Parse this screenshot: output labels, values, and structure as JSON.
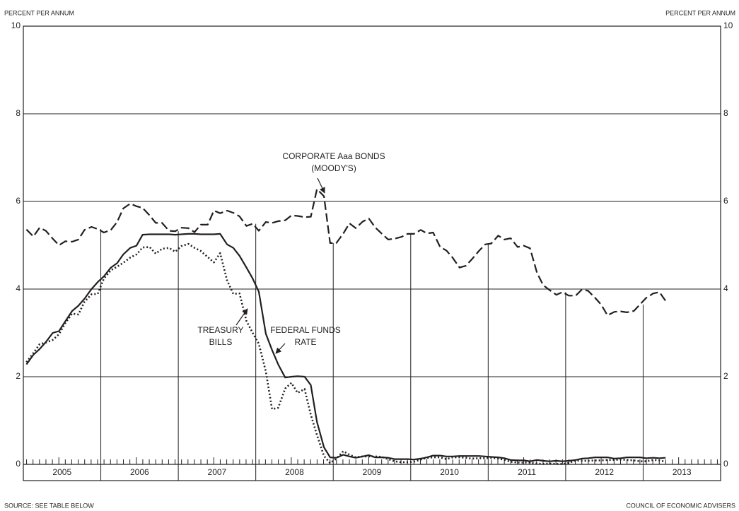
{
  "chart_data": {
    "type": "line",
    "y_label_left": "PERCENT PER ANNUM",
    "y_label_right": "PERCENT PER ANNUM",
    "source": "SOURCE: SEE TABLE BELOW",
    "credit": "COUNCIL OF ECONOMIC ADVISERS",
    "annotations": [
      {
        "lines": [
          "CORPORATE Aaa BONDS",
          "(MOODY'S)"
        ],
        "series": 0
      },
      {
        "lines": [
          "TREASURY",
          "BILLS"
        ],
        "series": 2
      },
      {
        "lines": [
          "FEDERAL FUNDS",
          "RATE"
        ],
        "series": 1
      }
    ],
    "xlim": [
      2005,
      2014
    ],
    "xticks": [
      {
        "value": 2005.5,
        "label": "2005"
      },
      {
        "value": 2006.5,
        "label": "2006"
      },
      {
        "value": 2007.5,
        "label": "2007"
      },
      {
        "value": 2008.5,
        "label": "2008"
      },
      {
        "value": 2009.5,
        "label": "2009"
      },
      {
        "value": 2010.5,
        "label": "2010"
      },
      {
        "value": 2011.5,
        "label": "2011"
      },
      {
        "value": 2012.5,
        "label": "2012"
      },
      {
        "value": 2013.5,
        "label": "2013"
      }
    ],
    "ylim": [
      0,
      10
    ],
    "yticks": [
      0,
      2,
      4,
      6,
      8,
      10
    ],
    "grid": true,
    "x": [
      2005.04,
      2005.13,
      2005.21,
      2005.29,
      2005.38,
      2005.46,
      2005.54,
      2005.63,
      2005.71,
      2005.79,
      2005.88,
      2005.96,
      2006.04,
      2006.13,
      2006.21,
      2006.29,
      2006.38,
      2006.46,
      2006.54,
      2006.63,
      2006.71,
      2006.79,
      2006.88,
      2006.96,
      2007.04,
      2007.13,
      2007.21,
      2007.29,
      2007.38,
      2007.46,
      2007.54,
      2007.63,
      2007.71,
      2007.79,
      2007.88,
      2007.96,
      2008.04,
      2008.13,
      2008.21,
      2008.29,
      2008.38,
      2008.46,
      2008.54,
      2008.63,
      2008.71,
      2008.79,
      2008.88,
      2008.96,
      2009.04,
      2009.13,
      2009.21,
      2009.29,
      2009.38,
      2009.46,
      2009.54,
      2009.63,
      2009.71,
      2009.79,
      2009.88,
      2009.96,
      2010.04,
      2010.13,
      2010.21,
      2010.29,
      2010.38,
      2010.46,
      2010.54,
      2010.63,
      2010.71,
      2010.79,
      2010.88,
      2010.96,
      2011.04,
      2011.13,
      2011.21,
      2011.29,
      2011.38,
      2011.46,
      2011.54,
      2011.63,
      2011.71,
      2011.79,
      2011.88,
      2011.96,
      2012.04,
      2012.13,
      2012.21,
      2012.29,
      2012.38,
      2012.46,
      2012.54,
      2012.63,
      2012.71,
      2012.79,
      2012.88,
      2012.96,
      2013.04,
      2013.13,
      2013.21,
      2013.29
    ],
    "series": [
      {
        "name": "CORPORATE Aaa BONDS (MOODY'S)",
        "color": "#231f20",
        "style": "dashed",
        "values": [
          5.36,
          5.2,
          5.4,
          5.33,
          5.15,
          5.0,
          5.09,
          5.08,
          5.13,
          5.35,
          5.42,
          5.37,
          5.29,
          5.35,
          5.53,
          5.84,
          5.95,
          5.89,
          5.85,
          5.68,
          5.51,
          5.51,
          5.33,
          5.32,
          5.4,
          5.39,
          5.3,
          5.47,
          5.47,
          5.79,
          5.73,
          5.79,
          5.74,
          5.66,
          5.44,
          5.49,
          5.33,
          5.53,
          5.51,
          5.55,
          5.57,
          5.68,
          5.67,
          5.64,
          5.65,
          6.28,
          6.12,
          5.05,
          5.05,
          5.27,
          5.5,
          5.39,
          5.54,
          5.61,
          5.41,
          5.26,
          5.13,
          5.15,
          5.19,
          5.26,
          5.26,
          5.35,
          5.27,
          5.29,
          4.96,
          4.88,
          4.72,
          4.49,
          4.53,
          4.68,
          4.87,
          5.02,
          5.04,
          5.22,
          5.13,
          5.16,
          4.96,
          4.99,
          4.93,
          4.37,
          4.09,
          3.98,
          3.87,
          3.93,
          3.85,
          3.85,
          3.99,
          3.96,
          3.8,
          3.64,
          3.4,
          3.48,
          3.49,
          3.47,
          3.5,
          3.65,
          3.8,
          3.9,
          3.93,
          3.73
        ]
      },
      {
        "name": "FEDERAL FUNDS RATE",
        "color": "#231f20",
        "style": "solid",
        "values": [
          2.28,
          2.5,
          2.63,
          2.79,
          3.0,
          3.04,
          3.26,
          3.5,
          3.62,
          3.78,
          4.0,
          4.16,
          4.29,
          4.49,
          4.59,
          4.79,
          4.94,
          4.99,
          5.24,
          5.25,
          5.25,
          5.25,
          5.25,
          5.24,
          5.25,
          5.26,
          5.26,
          5.25,
          5.25,
          5.25,
          5.26,
          5.02,
          4.94,
          4.76,
          4.49,
          4.24,
          3.94,
          2.98,
          2.61,
          2.28,
          1.98,
          2.0,
          2.01,
          2.0,
          1.81,
          0.97,
          0.39,
          0.16,
          0.15,
          0.22,
          0.18,
          0.15,
          0.18,
          0.21,
          0.16,
          0.16,
          0.15,
          0.12,
          0.12,
          0.12,
          0.11,
          0.13,
          0.16,
          0.2,
          0.2,
          0.18,
          0.18,
          0.19,
          0.19,
          0.19,
          0.19,
          0.18,
          0.17,
          0.16,
          0.14,
          0.1,
          0.09,
          0.09,
          0.07,
          0.1,
          0.08,
          0.07,
          0.08,
          0.07,
          0.08,
          0.1,
          0.13,
          0.14,
          0.16,
          0.16,
          0.16,
          0.13,
          0.14,
          0.16,
          0.16,
          0.16,
          0.14,
          0.15,
          0.14,
          0.15
        ]
      },
      {
        "name": "TREASURY BILLS",
        "color": "#231f20",
        "style": "dotted",
        "values": [
          2.33,
          2.54,
          2.74,
          2.78,
          2.84,
          2.97,
          3.22,
          3.44,
          3.42,
          3.71,
          3.88,
          3.89,
          4.24,
          4.43,
          4.51,
          4.6,
          4.72,
          4.79,
          4.95,
          4.96,
          4.81,
          4.92,
          4.94,
          4.85,
          4.98,
          5.03,
          4.94,
          4.87,
          4.73,
          4.61,
          4.82,
          4.2,
          3.89,
          3.9,
          3.27,
          3.0,
          2.75,
          2.12,
          1.26,
          1.29,
          1.73,
          1.86,
          1.63,
          1.72,
          1.13,
          0.67,
          0.19,
          0.03,
          0.13,
          0.3,
          0.22,
          0.16,
          0.18,
          0.18,
          0.18,
          0.17,
          0.12,
          0.07,
          0.05,
          0.05,
          0.06,
          0.11,
          0.15,
          0.16,
          0.16,
          0.12,
          0.16,
          0.16,
          0.15,
          0.13,
          0.14,
          0.14,
          0.15,
          0.13,
          0.1,
          0.06,
          0.04,
          0.04,
          0.04,
          0.02,
          0.01,
          0.02,
          0.01,
          0.01,
          0.03,
          0.09,
          0.08,
          0.08,
          0.09,
          0.09,
          0.1,
          0.1,
          0.11,
          0.1,
          0.09,
          0.07,
          0.07,
          0.1,
          0.09,
          0.06
        ]
      }
    ]
  }
}
